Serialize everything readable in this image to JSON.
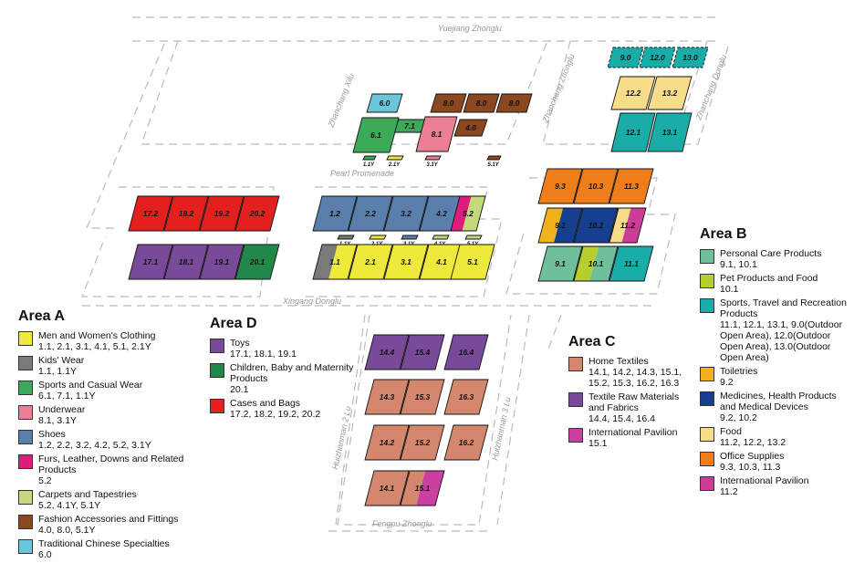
{
  "streets": {
    "yuejiang": "Yuejiang Zhonglu",
    "zhanchang_xilu": "Zhanchang Xilu",
    "zhanchang_zhonglu": "Zhanchang Zhonglu",
    "zhanchang_donglu": "Zhanchang Donglu",
    "pearl": "Pearl Promenade",
    "xingang": "Xingang Donglu",
    "huizhanman2": "Huizhanman 2 Lu",
    "huizhanman3": "Huizhanman 3 Lu",
    "fengpu": "Fengpu Zhonglu"
  },
  "colors": {
    "men_women": "#eee93a",
    "kids": "#7a7a7a",
    "sports_casual": "#3daa5a",
    "underwear": "#ec7f96",
    "shoes": "#5a7fad",
    "furs": "#df1b7c",
    "carpets": "#c4d97a",
    "fashion_acc": "#8a4720",
    "chinese": "#6ac6d8",
    "home_textiles": "#d4876d",
    "textile_raw": "#7a4a9a",
    "intl_pavilion": "#c940a0",
    "toys": "#7a4a9a",
    "children": "#22884a",
    "cases_bags": "#e2201e",
    "personal_care": "#6fbf9a",
    "pet": "#b7cf2c",
    "sports_travel": "#1aada8",
    "toiletries": "#f1b21e",
    "medicines": "#163f8f",
    "food": "#f7dc8a",
    "office": "#ef7d1a",
    "intl_b": "#cd3d98"
  },
  "halls": [
    {
      "label": "6.0",
      "color": "chinese"
    },
    {
      "label": "7.1",
      "color": "sports_casual"
    },
    {
      "label": "6.1",
      "color": "sports_casual"
    },
    {
      "label": "8.1",
      "color": "underwear"
    },
    {
      "label": "8.0",
      "color": "fashion_acc"
    },
    {
      "label": "8.0",
      "color": "fashion_acc"
    },
    {
      "label": "8.0",
      "color": "fashion_acc"
    },
    {
      "label": "4.0",
      "color": "fashion_acc"
    },
    {
      "label": "1.1Y",
      "color": "sports_casual",
      "y": true
    },
    {
      "label": "2.1Y",
      "color": "men_women",
      "y": true
    },
    {
      "label": "3.1Y",
      "color": "underwear",
      "y": true
    },
    {
      "label": "5.1Y",
      "color": "fashion_acc",
      "y": true
    },
    {
      "label": "9.0",
      "color": "sports_travel",
      "dashed": true
    },
    {
      "label": "12.0",
      "color": "sports_travel",
      "dashed": true
    },
    {
      "label": "13.0",
      "color": "sports_travel",
      "dashed": true
    },
    {
      "label": "12.2",
      "color": "food"
    },
    {
      "label": "13.2",
      "color": "food"
    },
    {
      "label": "12.1",
      "color": "sports_travel"
    },
    {
      "label": "13.1",
      "color": "sports_travel"
    },
    {
      "label": "17.2",
      "color": "cases_bags"
    },
    {
      "label": "18.2",
      "color": "cases_bags"
    },
    {
      "label": "19.2",
      "color": "cases_bags"
    },
    {
      "label": "20.2",
      "color": "cases_bags"
    },
    {
      "label": "17.1",
      "color": "toys"
    },
    {
      "label": "18.1",
      "color": "toys"
    },
    {
      "label": "19.1",
      "color": "toys"
    },
    {
      "label": "20.1",
      "color": "children"
    },
    {
      "label": "1.2",
      "color": "shoes"
    },
    {
      "label": "2.2",
      "color": "shoes"
    },
    {
      "label": "3.2",
      "color": "shoes"
    },
    {
      "label": "4.2",
      "color": "shoes"
    },
    {
      "label": "5.2",
      "color": "shoes",
      "split": [
        "furs",
        "carpets"
      ]
    },
    {
      "label": "1.1Y",
      "color": "kids",
      "y": true
    },
    {
      "label": "2.1Y",
      "color": "men_women",
      "y": true
    },
    {
      "label": "3.1Y",
      "color": "shoes",
      "y": true
    },
    {
      "label": "4.1Y",
      "color": "carpets",
      "y": true
    },
    {
      "label": "5.1Y",
      "color": "carpets",
      "y": true
    },
    {
      "label": "1.1",
      "color": "men_women",
      "split": [
        "kids",
        "men_women"
      ]
    },
    {
      "label": "2.1",
      "color": "men_women"
    },
    {
      "label": "3.1",
      "color": "men_women"
    },
    {
      "label": "4.1",
      "color": "men_women"
    },
    {
      "label": "5.1",
      "color": "men_women"
    },
    {
      "label": "9.3",
      "color": "office"
    },
    {
      "label": "10.3",
      "color": "office"
    },
    {
      "label": "11.3",
      "color": "office"
    },
    {
      "label": "9.2",
      "color": "medicines",
      "split": [
        "toiletries",
        "medicines"
      ]
    },
    {
      "label": "10.2",
      "color": "medicines"
    },
    {
      "label": "11.2",
      "color": "intl_b",
      "split": [
        "food",
        "intl_b"
      ]
    },
    {
      "label": "9.1",
      "color": "personal_care"
    },
    {
      "label": "10.1",
      "color": "pet",
      "split": [
        "pet",
        "personal_care"
      ]
    },
    {
      "label": "11.1",
      "color": "sports_travel"
    },
    {
      "label": "14.4",
      "color": "textile_raw"
    },
    {
      "label": "15.4",
      "color": "textile_raw"
    },
    {
      "label": "16.4",
      "color": "textile_raw"
    },
    {
      "label": "14.3",
      "color": "home_textiles"
    },
    {
      "label": "15.3",
      "color": "home_textiles"
    },
    {
      "label": "16.3",
      "color": "home_textiles"
    },
    {
      "label": "14.2",
      "color": "home_textiles"
    },
    {
      "label": "15.2",
      "color": "home_textiles"
    },
    {
      "label": "16.2",
      "color": "home_textiles"
    },
    {
      "label": "14.1",
      "color": "home_textiles"
    },
    {
      "label": "15.1",
      "color": "intl_pavilion",
      "split": [
        "home_textiles",
        "intl_pavilion"
      ]
    }
  ],
  "legend_a": {
    "title": "Area A",
    "items": [
      {
        "name": "Men and Women's Clothing",
        "halls": "1.1, 2.1, 3.1, 4.1, 5.1, 2.1Y",
        "color": "men_women"
      },
      {
        "name": "Kids' Wear",
        "halls": "1.1, 1.1Y",
        "color": "kids"
      },
      {
        "name": "Sports and Casual Wear",
        "halls": "6.1, 7.1, 1.1Y",
        "color": "sports_casual"
      },
      {
        "name": "Underwear",
        "halls": "8.1, 3.1Y",
        "color": "underwear"
      },
      {
        "name": "Shoes",
        "halls": "1.2, 2.2, 3.2, 4.2, 5.2, 3.1Y",
        "color": "shoes"
      },
      {
        "name": "Furs, Leather, Downs and Related Products",
        "halls": "5.2",
        "color": "furs"
      },
      {
        "name": "Carpets and Tapestries",
        "halls": "5.2, 4.1Y, 5.1Y",
        "color": "carpets"
      },
      {
        "name": "Fashion Accessories and Fittings",
        "halls": "4.0, 8.0, 5.1Y",
        "color": "fashion_acc"
      },
      {
        "name": "Traditional Chinese Specialties",
        "halls": "6.0",
        "color": "chinese"
      }
    ]
  },
  "legend_d": {
    "title": "Area D",
    "items": [
      {
        "name": "Toys",
        "halls": "17.1, 18.1, 19.1",
        "color": "toys"
      },
      {
        "name": "Children, Baby and Maternity Products",
        "halls": "20.1",
        "color": "children"
      },
      {
        "name": "Cases and Bags",
        "halls": "17.2, 18.2, 19.2, 20.2",
        "color": "cases_bags"
      }
    ]
  },
  "legend_c": {
    "title": "Area C",
    "items": [
      {
        "name": "Home Textiles",
        "halls": "14.1, 14.2, 14.3, 15.1, 15.2, 15.3, 16.2, 16.3",
        "color": "home_textiles"
      },
      {
        "name": "Textile Raw Materials and Fabrics",
        "halls": "14.4, 15.4, 16.4",
        "color": "textile_raw"
      },
      {
        "name": "International Pavilion",
        "halls": "15.1",
        "color": "intl_pavilion"
      }
    ]
  },
  "legend_b": {
    "title": "Area B",
    "items": [
      {
        "name": "Personal Care Products",
        "halls": "9.1, 10.1",
        "color": "personal_care"
      },
      {
        "name": "Pet Products and Food",
        "halls": "10.1",
        "color": "pet"
      },
      {
        "name": "Sports, Travel and Recreation Products",
        "halls": "11.1, 12.1, 13.1, 9.0(Outdoor Open Area), 12.0(Outdoor Open Area), 13.0(Outdoor Open Area)",
        "color": "sports_travel"
      },
      {
        "name": "Toiletries",
        "halls": "9.2",
        "color": "toiletries"
      },
      {
        "name": "Medicines, Health Products and Medical Devices",
        "halls": "9.2, 10.2",
        "color": "medicines"
      },
      {
        "name": "Food",
        "halls": "11.2, 12.2, 13.2",
        "color": "food"
      },
      {
        "name": "Office Supplies",
        "halls": "9.3, 10.3, 11.3",
        "color": "office"
      },
      {
        "name": "International Pavilion",
        "halls": "11.2",
        "color": "intl_b"
      }
    ]
  }
}
